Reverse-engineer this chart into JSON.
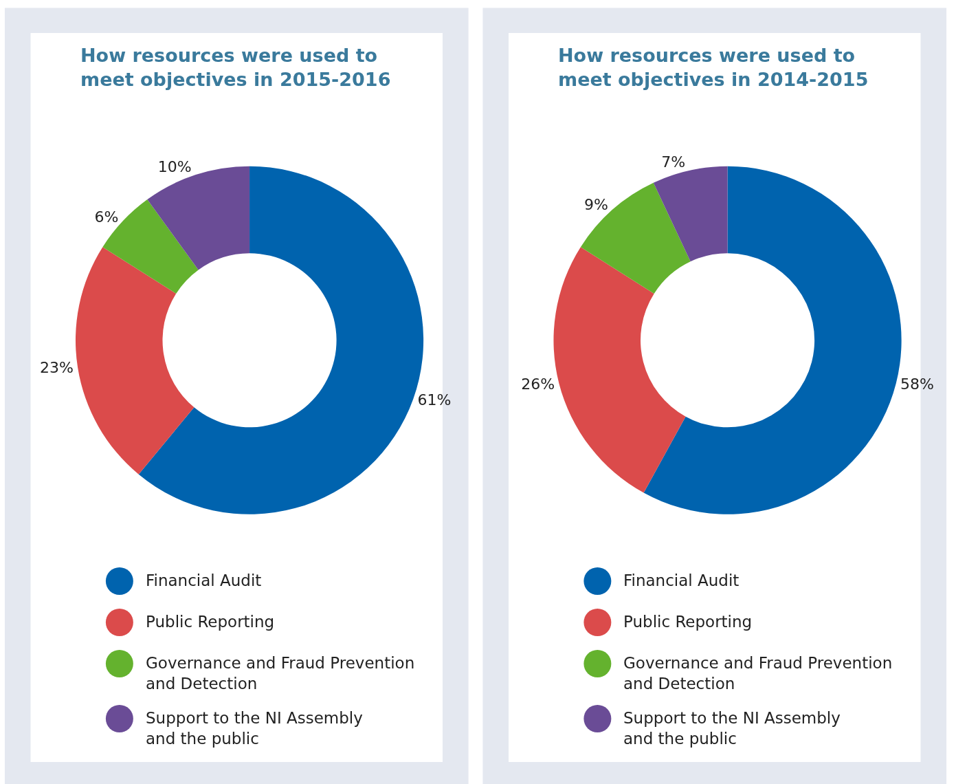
{
  "chart_data": [
    {
      "type": "donut",
      "title": "How resources were used to\nmeet objectives in 2015-2016",
      "categories": [
        "Financial Audit",
        "Public Reporting",
        "Governance and Fraud Prevention and Detection",
        "Support to the NI Assembly and the public"
      ],
      "values": [
        61,
        23,
        6,
        10
      ],
      "value_labels": [
        "61%",
        "23%",
        "6%",
        "10%"
      ],
      "colors": [
        "#0063ae",
        "#db4b4b",
        "#64b22e",
        "#6a4c96"
      ],
      "legend": "bottom"
    },
    {
      "type": "donut",
      "title": "How resources were used to\nmeet objectives in 2014-2015",
      "categories": [
        "Financial Audit",
        "Public Reporting",
        "Governance and Fraud Prevention and Detection",
        "Support to the NI Assembly and the public"
      ],
      "values": [
        58,
        26,
        9,
        7
      ],
      "value_labels": [
        "58%",
        "26%",
        "9%",
        "7%"
      ],
      "colors": [
        "#0063ae",
        "#db4b4b",
        "#64b22e",
        "#6a4c96"
      ],
      "legend": "bottom"
    }
  ]
}
